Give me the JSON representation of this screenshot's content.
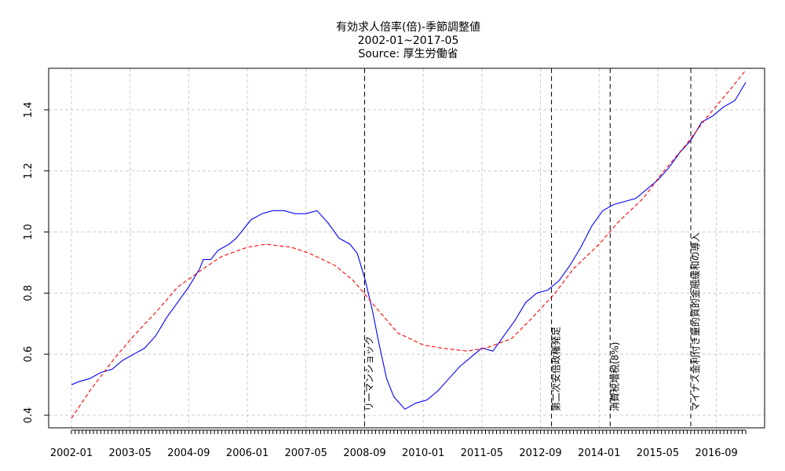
{
  "chart_data": {
    "type": "line",
    "title": [
      "有効求人倍率(倍)-季節調整値",
      "2002-01~2017-05",
      "Source: 厚生労働省"
    ],
    "xlabel": "",
    "ylabel": "",
    "x_range": [
      "2002-01",
      "2017-05"
    ],
    "ylim": [
      0.4,
      1.5
    ],
    "y_ticks": [
      0.4,
      0.6,
      0.8,
      1.0,
      1.2,
      1.4
    ],
    "y_tick_labels": [
      "0.4",
      "0.6",
      "0.8",
      "1.0",
      "1.2",
      "1.4"
    ],
    "x_tick_labels": [
      "2002-01",
      "2003-05",
      "2004-09",
      "2006-01",
      "2007-05",
      "2008-09",
      "2010-01",
      "2011-05",
      "2012-09",
      "2014-01",
      "2015-05",
      "2016-09"
    ],
    "grid": true,
    "series": [
      {
        "style": "solid",
        "color": "#0000ff",
        "points": [
          [
            "2002-01",
            0.5
          ],
          [
            "2002-03",
            0.51
          ],
          [
            "2002-06",
            0.52
          ],
          [
            "2002-09",
            0.54
          ],
          [
            "2002-12",
            0.55
          ],
          [
            "2003-03",
            0.58
          ],
          [
            "2003-06",
            0.6
          ],
          [
            "2003-09",
            0.62
          ],
          [
            "2003-12",
            0.66
          ],
          [
            "2004-03",
            0.72
          ],
          [
            "2004-06",
            0.77
          ],
          [
            "2004-09",
            0.82
          ],
          [
            "2004-12",
            0.88
          ],
          [
            "2005-01",
            0.91
          ],
          [
            "2005-03",
            0.91
          ],
          [
            "2005-05",
            0.94
          ],
          [
            "2005-08",
            0.96
          ],
          [
            "2005-10",
            0.98
          ],
          [
            "2005-12",
            1.01
          ],
          [
            "2006-02",
            1.04
          ],
          [
            "2006-05",
            1.06
          ],
          [
            "2006-08",
            1.07
          ],
          [
            "2006-11",
            1.07
          ],
          [
            "2007-02",
            1.06
          ],
          [
            "2007-05",
            1.06
          ],
          [
            "2007-08",
            1.07
          ],
          [
            "2007-11",
            1.03
          ],
          [
            "2008-02",
            0.98
          ],
          [
            "2008-05",
            0.96
          ],
          [
            "2008-07",
            0.93
          ],
          [
            "2008-09",
            0.85
          ],
          [
            "2008-11",
            0.75
          ],
          [
            "2009-01",
            0.63
          ],
          [
            "2009-03",
            0.52
          ],
          [
            "2009-05",
            0.46
          ],
          [
            "2009-08",
            0.42
          ],
          [
            "2009-11",
            0.44
          ],
          [
            "2010-02",
            0.45
          ],
          [
            "2010-05",
            0.48
          ],
          [
            "2010-08",
            0.52
          ],
          [
            "2010-11",
            0.56
          ],
          [
            "2011-02",
            0.59
          ],
          [
            "2011-05",
            0.62
          ],
          [
            "2011-08",
            0.61
          ],
          [
            "2011-11",
            0.66
          ],
          [
            "2012-02",
            0.71
          ],
          [
            "2012-05",
            0.77
          ],
          [
            "2012-08",
            0.8
          ],
          [
            "2012-11",
            0.81
          ],
          [
            "2013-02",
            0.84
          ],
          [
            "2013-05",
            0.89
          ],
          [
            "2013-08",
            0.95
          ],
          [
            "2013-11",
            1.02
          ],
          [
            "2014-02",
            1.07
          ],
          [
            "2014-05",
            1.09
          ],
          [
            "2014-08",
            1.1
          ],
          [
            "2014-11",
            1.11
          ],
          [
            "2015-02",
            1.14
          ],
          [
            "2015-05",
            1.17
          ],
          [
            "2015-08",
            1.21
          ],
          [
            "2015-11",
            1.26
          ],
          [
            "2016-02",
            1.3
          ],
          [
            "2016-05",
            1.36
          ],
          [
            "2016-08",
            1.38
          ],
          [
            "2016-11",
            1.41
          ],
          [
            "2017-02",
            1.43
          ],
          [
            "2017-05",
            1.49
          ]
        ]
      },
      {
        "style": "dashed",
        "color": "#ff0000",
        "points": [
          [
            "2002-01",
            0.39
          ],
          [
            "2002-06",
            0.48
          ],
          [
            "2003-01",
            0.59
          ],
          [
            "2003-06",
            0.66
          ],
          [
            "2004-01",
            0.75
          ],
          [
            "2004-06",
            0.82
          ],
          [
            "2005-01",
            0.88
          ],
          [
            "2005-06",
            0.92
          ],
          [
            "2006-01",
            0.95
          ],
          [
            "2006-06",
            0.96
          ],
          [
            "2007-01",
            0.95
          ],
          [
            "2007-06",
            0.93
          ],
          [
            "2008-01",
            0.89
          ],
          [
            "2008-06",
            0.84
          ],
          [
            "2009-01",
            0.74
          ],
          [
            "2009-06",
            0.67
          ],
          [
            "2010-01",
            0.63
          ],
          [
            "2010-06",
            0.62
          ],
          [
            "2011-01",
            0.61
          ],
          [
            "2011-06",
            0.62
          ],
          [
            "2012-01",
            0.65
          ],
          [
            "2012-06",
            0.71
          ],
          [
            "2013-01",
            0.8
          ],
          [
            "2013-06",
            0.88
          ],
          [
            "2014-01",
            0.96
          ],
          [
            "2014-06",
            1.03
          ],
          [
            "2015-01",
            1.11
          ],
          [
            "2015-06",
            1.19
          ],
          [
            "2016-01",
            1.29
          ],
          [
            "2016-06",
            1.37
          ],
          [
            "2017-01",
            1.47
          ],
          [
            "2017-05",
            1.53
          ]
        ]
      }
    ],
    "events": [
      {
        "date": "2008-09",
        "label": "リーマンショック"
      },
      {
        "date": "2012-12",
        "label": "第二次安倍政権発足"
      },
      {
        "date": "2014-04",
        "label": "消費税増税(8%)"
      },
      {
        "date": "2016-02",
        "label": "マイナス金利付き量的質的金融緩和の導入"
      }
    ]
  }
}
